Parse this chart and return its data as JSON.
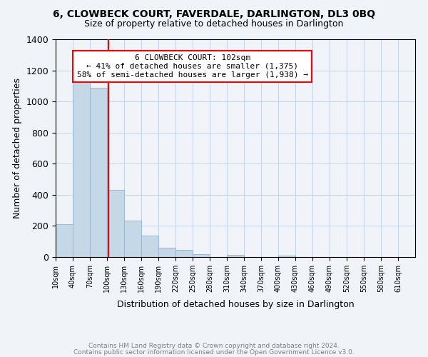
{
  "title": "6, CLOWBECK COURT, FAVERDALE, DARLINGTON, DL3 0BQ",
  "subtitle": "Size of property relative to detached houses in Darlington",
  "xlabel": "Distribution of detached houses by size in Darlington",
  "ylabel": "Number of detached properties",
  "bar_color": "#c5d8e8",
  "bar_edgecolor": "#a0bcd4",
  "annotation_box_text": "6 CLOWBECK COURT: 102sqm\n← 41% of detached houses are smaller (1,375)\n58% of semi-detached houses are larger (1,938) →",
  "vline_x": 102,
  "vline_color": "red",
  "ylim": [
    0,
    1400
  ],
  "yticks": [
    0,
    200,
    400,
    600,
    800,
    1000,
    1200,
    1400
  ],
  "xtick_labels": [
    "10sqm",
    "40sqm",
    "70sqm",
    "100sqm",
    "130sqm",
    "160sqm",
    "190sqm",
    "220sqm",
    "250sqm",
    "280sqm",
    "310sqm",
    "340sqm",
    "370sqm",
    "400sqm",
    "430sqm",
    "460sqm",
    "490sqm",
    "520sqm",
    "550sqm",
    "580sqm",
    "610sqm"
  ],
  "bin_edges": [
    10,
    40,
    70,
    100,
    130,
    160,
    190,
    220,
    250,
    280,
    310,
    340,
    370,
    400,
    430,
    460,
    490,
    520,
    550,
    580,
    610
  ],
  "bin_heights": [
    210,
    1130,
    1090,
    430,
    235,
    140,
    60,
    45,
    20,
    0,
    15,
    0,
    0,
    10,
    0,
    0,
    0,
    0,
    0,
    0
  ],
  "footer_line1": "Contains HM Land Registry data © Crown copyright and database right 2024.",
  "footer_line2": "Contains public sector information licensed under the Open Government Licence v3.0.",
  "background_color": "#f0f4f8",
  "grid_color": "#c8d8e8"
}
